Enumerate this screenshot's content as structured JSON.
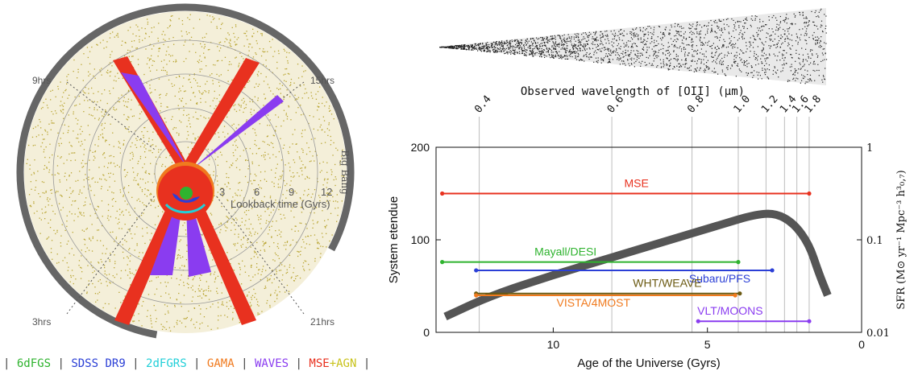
{
  "colors": {
    "mse": "#e8311f",
    "desi": "#2fb32f",
    "pfs": "#2b3fd6",
    "weave": "#6b5a12",
    "vista": "#f07a1e",
    "moons": "#8a3cf0",
    "sfr": "#555555",
    "grid": "#bdbdbd",
    "cone_dots": "#b8a431"
  },
  "cone_plot": {
    "hour_labels": [
      "9hrs",
      "15hrs",
      "3hrs",
      "21hrs"
    ],
    "big_bang_label": "Big Bang",
    "ring_labels": [
      "3",
      "6",
      "9",
      "12"
    ],
    "radial_axis_label": "Lookback time (Gyrs)",
    "survey_legend": [
      {
        "name": "6dFGS",
        "color": "#2fb32f"
      },
      {
        "name": "SDSS DR9",
        "color": "#2b3fd6"
      },
      {
        "name": "2dFGRS",
        "color": "#22cfd8"
      },
      {
        "name": "GAMA",
        "color": "#f07a1e"
      },
      {
        "name": "WAVES",
        "color": "#8a3cf0"
      },
      {
        "name": "MSE+AGN",
        "color": "#e8311f",
        "suffix": "+AGN",
        "suffix_color": "#c8c21a"
      }
    ]
  },
  "chart_data": {
    "type": "line",
    "xlabel": "Age of the Universe (Gyrs)",
    "ylabel": "System etendue",
    "y2label": "SFR (M⊙ yr⁻¹ Mpc⁻³ h³₀,₇)",
    "toplabel": "Observed wavelength of [OII] (μm)",
    "xlim": [
      13.8,
      0
    ],
    "ylim": [
      0,
      200
    ],
    "x_ticks": [
      10,
      5,
      0
    ],
    "y_ticks": [
      0,
      100,
      200
    ],
    "y2_ticks": [
      "0.01",
      "0.1",
      "1"
    ],
    "top_ticks": [
      {
        "label": "0.4",
        "age": 12.4
      },
      {
        "label": "0.6",
        "age": 8.1
      },
      {
        "label": "0.8",
        "age": 5.5
      },
      {
        "label": "1.0",
        "age": 4.0
      },
      {
        "label": "1.2",
        "age": 3.1
      },
      {
        "label": "1.4",
        "age": 2.5
      },
      {
        "label": "1.6",
        "age": 2.1
      },
      {
        "label": "1.8",
        "age": 1.7
      }
    ],
    "surveys": [
      {
        "name": "MSE",
        "etendue": 150,
        "age_start": 13.6,
        "age_end": 1.7,
        "color_key": "mse"
      },
      {
        "name": "Mayall/DESI",
        "etendue": 76,
        "age_start": 13.6,
        "age_end": 4.0,
        "color_key": "desi"
      },
      {
        "name": "Subaru/PFS",
        "etendue": 67,
        "age_start": 12.5,
        "age_end": 2.9,
        "color_key": "pfs"
      },
      {
        "name": "WHT/WEAVE",
        "etendue": 42,
        "age_start": 12.5,
        "age_end": 3.95,
        "color_key": "weave"
      },
      {
        "name": "VISTA/4MOST",
        "etendue": 40,
        "age_start": 12.5,
        "age_end": 4.1,
        "color_key": "vista"
      },
      {
        "name": "VLT/MOONS",
        "etendue": 12,
        "age_start": 5.3,
        "age_end": 1.7,
        "color_key": "moons"
      }
    ],
    "sfr_curve": [
      {
        "age": 13.5,
        "etendue": 17
      },
      {
        "age": 12.0,
        "etendue": 40
      },
      {
        "age": 10.0,
        "etendue": 62
      },
      {
        "age": 8.0,
        "etendue": 82
      },
      {
        "age": 6.0,
        "etendue": 102
      },
      {
        "age": 4.5,
        "etendue": 117
      },
      {
        "age": 3.5,
        "etendue": 127
      },
      {
        "age": 2.8,
        "etendue": 129
      },
      {
        "age": 2.2,
        "etendue": 118
      },
      {
        "age": 1.7,
        "etendue": 95
      },
      {
        "age": 1.4,
        "etendue": 65
      },
      {
        "age": 1.1,
        "etendue": 40
      }
    ]
  }
}
